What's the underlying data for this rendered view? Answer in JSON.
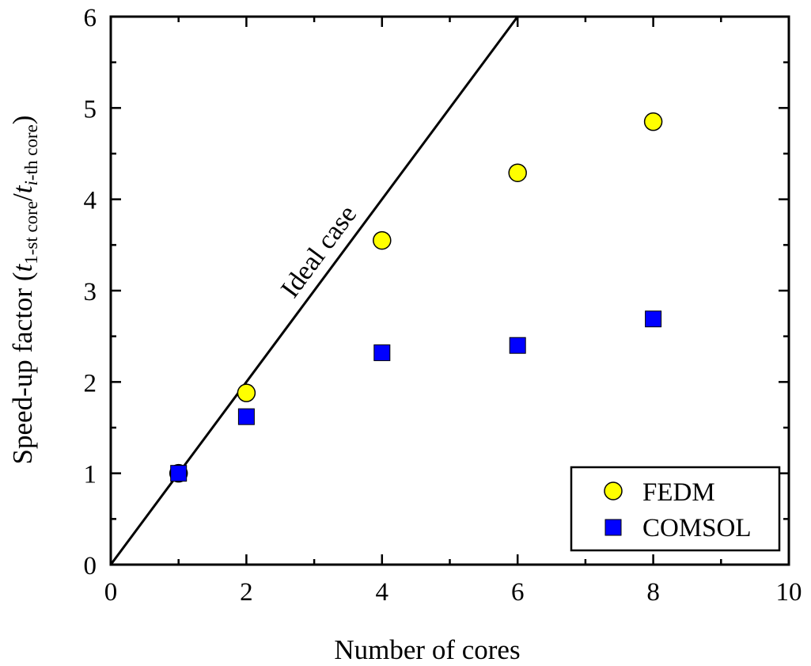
{
  "chart_data": {
    "type": "scatter",
    "xlabel": "Number of cores",
    "ylabel": {
      "prefix": "Speed-up factor (",
      "t1": "t",
      "sub1": "1-st core",
      "slash": "/",
      "t2": "t",
      "sub2_italic": "i",
      "sub2_rest": "-th core",
      "suffix": ")"
    },
    "xlim": [
      0,
      10
    ],
    "ylim": [
      0,
      6
    ],
    "x_ticks": [
      "0",
      "2",
      "4",
      "6",
      "8",
      "10"
    ],
    "y_ticks": [
      "0",
      "1",
      "2",
      "3",
      "4",
      "5",
      "6"
    ],
    "grid": false,
    "legend_position": "bottom-right",
    "series": [
      {
        "name": "FEDM",
        "marker": "circle",
        "color": "#ffff00",
        "x": [
          1,
          2,
          4,
          6,
          8
        ],
        "y": [
          1.0,
          1.88,
          3.55,
          4.29,
          4.85
        ]
      },
      {
        "name": "COMSOL",
        "marker": "square",
        "color": "#0000ff",
        "x": [
          1,
          2,
          4,
          6,
          8
        ],
        "y": [
          1.0,
          1.62,
          2.32,
          2.4,
          2.69
        ]
      }
    ],
    "reference_line": {
      "label": "Ideal case",
      "x": [
        0,
        6
      ],
      "y": [
        0,
        6
      ]
    }
  }
}
